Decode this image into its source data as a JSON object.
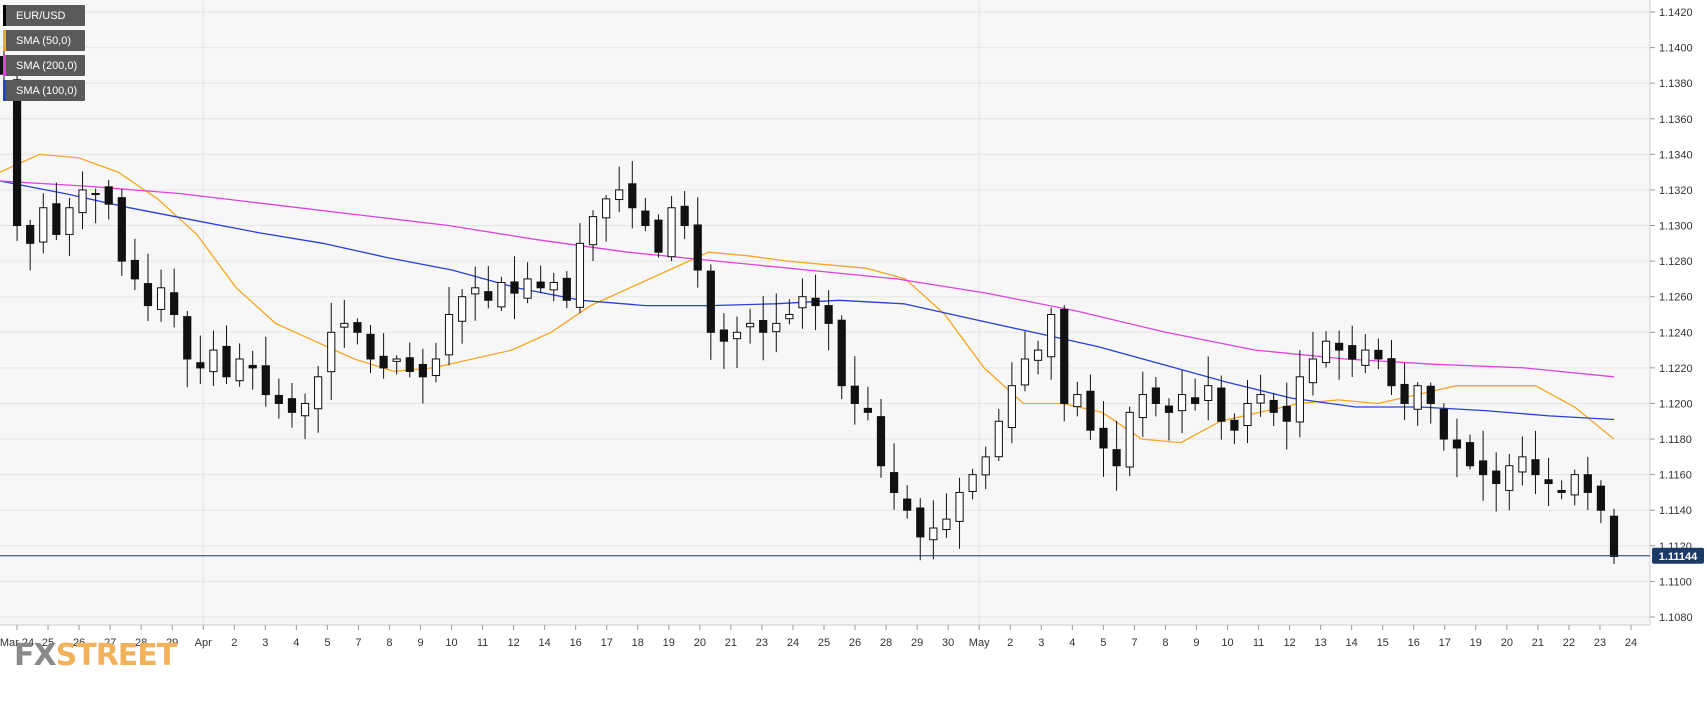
{
  "legend": [
    {
      "label": "EUR/USD",
      "color": "#000000"
    },
    {
      "label": "SMA (50,0)",
      "color": "#f5a623"
    },
    {
      "label": "SMA (200,0)",
      "color": "#e040e0"
    },
    {
      "label": "SMA (100,0)",
      "color": "#2a3fd6"
    }
  ],
  "logo": {
    "fx": "FX",
    "street": "STREET"
  },
  "chart_data": {
    "type": "candlestick",
    "symbol": "EUR/USD",
    "ylim": [
      1.107,
      1.1425
    ],
    "y_ticks": [
      "1.1420",
      "1.1400",
      "1.1380",
      "1.1360",
      "1.1340",
      "1.1320",
      "1.1300",
      "1.1280",
      "1.1260",
      "1.1240",
      "1.1220",
      "1.1200",
      "1.1180",
      "1.1160",
      "1.1140",
      "1.1120",
      "1.1100",
      "1.1080"
    ],
    "x_ticks": [
      "Mar 24",
      "25",
      "26",
      "27",
      "28",
      "29",
      "Apr",
      "2",
      "3",
      "4",
      "5",
      "7",
      "8",
      "9",
      "10",
      "11",
      "12",
      "14",
      "16",
      "17",
      "18",
      "19",
      "20",
      "21",
      "23",
      "24",
      "25",
      "26",
      "28",
      "29",
      "30",
      "May",
      "2",
      "3",
      "4",
      "5",
      "7",
      "8",
      "9",
      "10",
      "11",
      "12",
      "13",
      "14",
      "15",
      "16",
      "17",
      "19",
      "20",
      "21",
      "22",
      "23",
      "24"
    ],
    "current_price": "1.11144",
    "price_close_series": [
      1.1385,
      1.13,
      1.129,
      1.131,
      1.1295,
      1.131,
      1.132,
      1.1318,
      1.1312,
      1.128,
      1.127,
      1.1255,
      1.1265,
      1.125,
      1.1225,
      1.122,
      1.123,
      1.1215,
      1.1225,
      1.122,
      1.1205,
      1.12,
      1.1195,
      1.12,
      1.1215,
      1.124,
      1.1245,
      1.124,
      1.1225,
      1.122,
      1.1225,
      1.1218,
      1.1215,
      1.1225,
      1.125,
      1.126,
      1.1265,
      1.1258,
      1.1268,
      1.1262,
      1.127,
      1.1265,
      1.1268,
      1.1258,
      1.129,
      1.1305,
      1.1315,
      1.132,
      1.131,
      1.13,
      1.1285,
      1.131,
      1.13,
      1.1275,
      1.124,
      1.1235,
      1.124,
      1.1245,
      1.124,
      1.1245,
      1.125,
      1.126,
      1.1255,
      1.1245,
      1.121,
      1.12,
      1.1195,
      1.1165,
      1.115,
      1.114,
      1.1125,
      1.113,
      1.1135,
      1.115,
      1.116,
      1.117,
      1.119,
      1.121,
      1.1225,
      1.123,
      1.125,
      1.12,
      1.1205,
      1.1185,
      1.1175,
      1.1165,
      1.1195,
      1.1205,
      1.12,
      1.1195,
      1.1205,
      1.12,
      1.121,
      1.119,
      1.1185,
      1.12,
      1.1205,
      1.1195,
      1.119,
      1.1215,
      1.1225,
      1.1235,
      1.123,
      1.1225,
      1.123,
      1.1225,
      1.121,
      1.12,
      1.121,
      1.12,
      1.118,
      1.1175,
      1.1165,
      1.116,
      1.1155,
      1.1165,
      1.117,
      1.116,
      1.1155,
      1.115,
      1.116,
      1.115,
      1.114,
      1.1114
    ],
    "sma_50": [
      1.133,
      1.134,
      1.1338,
      1.133,
      1.1315,
      1.1295,
      1.1265,
      1.1245,
      1.1235,
      1.1225,
      1.1218,
      1.122,
      1.1225,
      1.123,
      1.124,
      1.1255,
      1.1265,
      1.1275,
      1.1285,
      1.1283,
      1.128,
      1.1278,
      1.1276,
      1.127,
      1.125,
      1.122,
      1.12,
      1.12,
      1.1195,
      1.118,
      1.1178,
      1.119,
      1.1195,
      1.12,
      1.1202,
      1.12,
      1.1205,
      1.121,
      1.121,
      1.121,
      1.1198,
      1.118
    ],
    "sma_100": [
      1.1325,
      1.1318,
      1.131,
      1.1303,
      1.1296,
      1.129,
      1.1282,
      1.1275,
      1.1265,
      1.1258,
      1.1255,
      1.1255,
      1.1256,
      1.1258,
      1.1256,
      1.1248,
      1.124,
      1.1232,
      1.1222,
      1.1212,
      1.1203,
      1.1198,
      1.1198,
      1.1196,
      1.1193,
      1.1191
    ],
    "sma_200": [
      1.1325,
      1.1322,
      1.1318,
      1.1312,
      1.1306,
      1.13,
      1.1292,
      1.1285,
      1.128,
      1.1275,
      1.127,
      1.1262,
      1.1252,
      1.124,
      1.123,
      1.1225,
      1.1222,
      1.122,
      1.1215
    ]
  }
}
